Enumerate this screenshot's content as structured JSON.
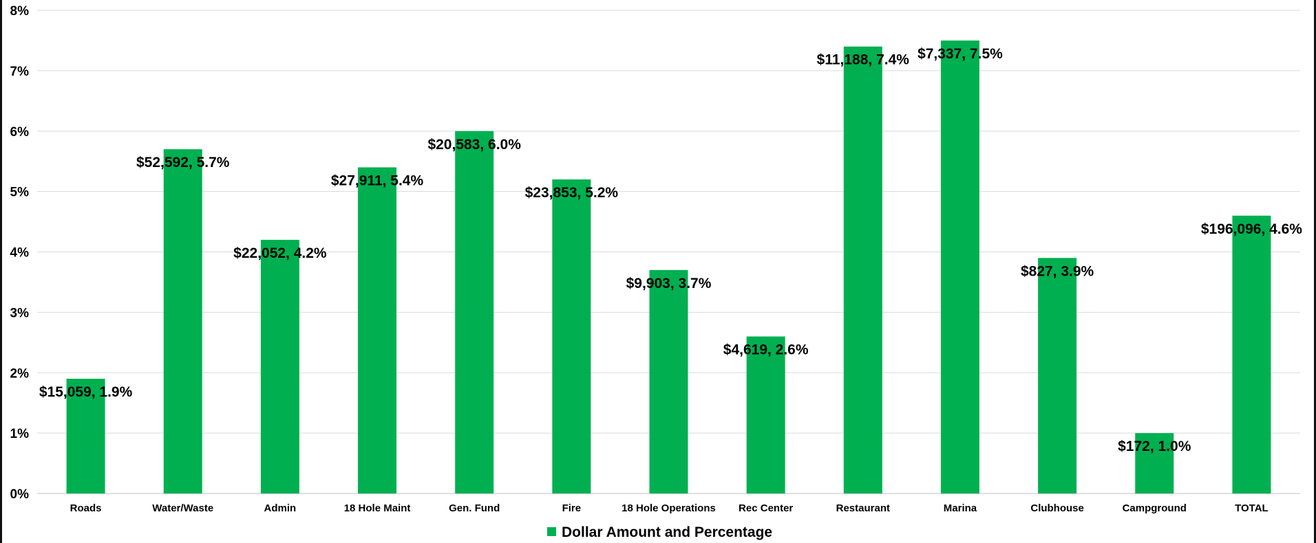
{
  "chart_data": {
    "type": "bar",
    "categories": [
      "Roads",
      "Water/Waste",
      "Admin",
      "18 Hole Maint",
      "Gen. Fund",
      "Fire",
      "18 Hole Operations",
      "Rec Center",
      "Restaurant",
      "Marina",
      "Clubhouse",
      "Campground",
      "TOTAL"
    ],
    "series": [
      {
        "name": "Dollar Amount and Percentage",
        "values": [
          1.9,
          5.7,
          4.2,
          5.4,
          6.0,
          5.2,
          3.7,
          2.6,
          7.4,
          7.5,
          3.9,
          1.0,
          4.6
        ],
        "data_labels": [
          "$15,059, 1.9%",
          "$52,592, 5.7%",
          "$22,052, 4.2%",
          "$27,911, 5.4%",
          "$20,583, 6.0%",
          "$23,853, 5.2%",
          "$9,903, 3.7%",
          "$4,619, 2.6%",
          "$11,188, 7.4%",
          "$7,337, 7.5%",
          "$827, 3.9%",
          "$172, 1.0%",
          "$196,096, 4.6%"
        ],
        "color": "#00B050"
      }
    ],
    "ylim": [
      0,
      8
    ],
    "y_ticks": [
      "0%",
      "1%",
      "2%",
      "3%",
      "4%",
      "5%",
      "6%",
      "7%",
      "8%"
    ],
    "grid": true,
    "legend_position": "bottom",
    "title": "",
    "xlabel": "",
    "ylabel": ""
  }
}
